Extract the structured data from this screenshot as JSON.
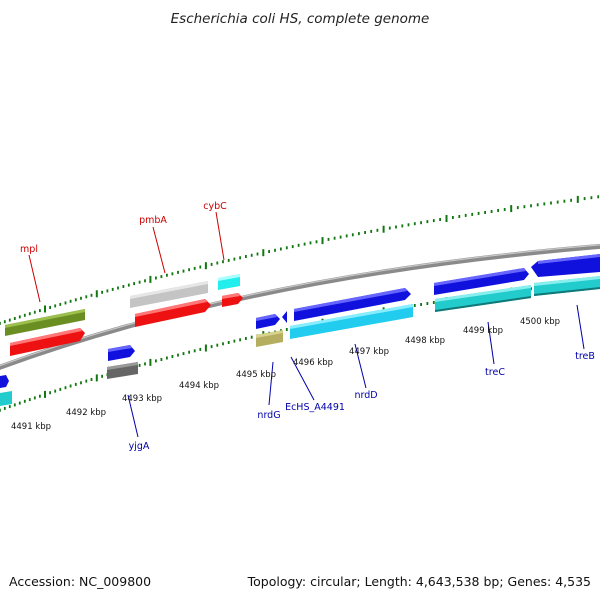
{
  "title": "Escherichia coli HS, complete genome",
  "footer": {
    "accession": "Accession: NC_009800",
    "summary": "Topology: circular; Length: 4,643,538 bp; Genes: 4,535"
  },
  "kbp_labels": [
    "4491 kbp",
    "4492 kbp",
    "4493 kbp",
    "4494 kbp",
    "4495 kbp",
    "4496 kbp",
    "4497 kbp",
    "4498 kbp",
    "4499 kbp",
    "4500 kbp"
  ],
  "genes_top_strand": [
    "mpl",
    "pmbA",
    "cybC"
  ],
  "genes_bottom_strand": [
    "yjgA",
    "nrdG",
    "EcHS_A4491",
    "nrdD",
    "treC",
    "treB"
  ],
  "colors": {
    "backbone": "#8c8c8c",
    "tick": "#117711",
    "cds_red": "#ee1111",
    "cds_blue": "#1111dd",
    "cds_cyan_light": "#22ccee",
    "cds_teal": "#22bbbb",
    "olive": "#6b8e23",
    "gray_light": "#c4c4c4",
    "gray_dark": "#666666",
    "khaki": "#b5ad5f",
    "label_top": "#cc0000",
    "label_bottom": "#0000aa"
  }
}
